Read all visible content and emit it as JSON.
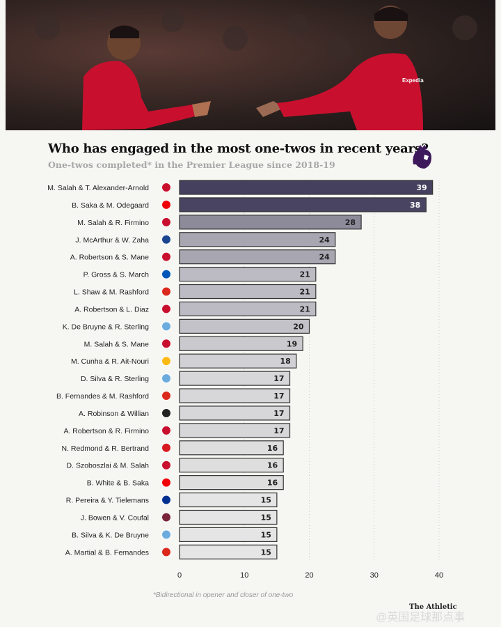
{
  "header": {
    "title": "Who has engaged in the most one-twos in recent years?",
    "subtitle": "One-twos completed* in the Premier League since 2018-19",
    "logo_icon": "premier-league-lion-icon"
  },
  "chart_data": {
    "type": "bar",
    "orientation": "horizontal",
    "title": "Who has engaged in the most one-twos in recent years?",
    "subtitle": "One-twos completed* in the Premier League since 2018-19",
    "xlabel": "One-twos completed",
    "ylabel": "",
    "xlim": [
      0,
      40
    ],
    "xticks": [
      0,
      10,
      20,
      30,
      40
    ],
    "grid": "vertical dotted",
    "color_scale": {
      "low": "#e5e5e5",
      "high": "#45405e"
    },
    "categories": [
      "M. Salah & T. Alexander-Arnold",
      "B. Saka & M. Odegaard",
      "M. Salah & R. Firmino",
      "J. McArthur & W. Zaha",
      "A. Robertson & S. Mane",
      "P. Gross & S. March",
      "L. Shaw & M. Rashford",
      "A. Robertson & L. Diaz",
      "K. De Bruyne & R. Sterling",
      "M. Salah & S. Mane",
      "M. Cunha & R. Ait-Nouri",
      "D. Silva & R. Sterling",
      "B. Fernandes & M. Rashford",
      "A. Robinson & Willian",
      "A. Robertson & R. Firmino",
      "N. Redmond & R. Bertrand",
      "D. Szoboszlai & M. Salah",
      "B. White & B. Saka",
      "R. Pereira & Y. Tielemans",
      "J. Bowen & V. Coufal",
      "B. Silva & K. De Bruyne",
      "A. Martial & B. Fernandes"
    ],
    "values": [
      39,
      38,
      28,
      24,
      24,
      21,
      21,
      21,
      20,
      19,
      18,
      17,
      17,
      17,
      17,
      16,
      16,
      16,
      15,
      15,
      15,
      15
    ],
    "clubs": [
      "liverpool",
      "arsenal",
      "liverpool",
      "crystal-palace",
      "liverpool",
      "brighton",
      "man-utd",
      "liverpool",
      "man-city",
      "liverpool",
      "wolves",
      "man-city",
      "man-utd",
      "fulham",
      "liverpool",
      "southampton",
      "liverpool",
      "arsenal",
      "leicester",
      "west-ham",
      "man-city",
      "man-utd"
    ]
  },
  "club_colors": {
    "liverpool": "#c8102e",
    "arsenal": "#ef0107",
    "crystal-palace": "#1b458f",
    "brighton": "#0057b8",
    "man-utd": "#da291c",
    "man-city": "#6cabdd",
    "wolves": "#fdb913",
    "fulham": "#222222",
    "southampton": "#d71920",
    "leicester": "#003090",
    "west-ham": "#7a263a"
  },
  "footnote": "*Bidirectional in opener and closer of one-two",
  "brand": "The Athletic",
  "watermark": "@英国足球那点事"
}
